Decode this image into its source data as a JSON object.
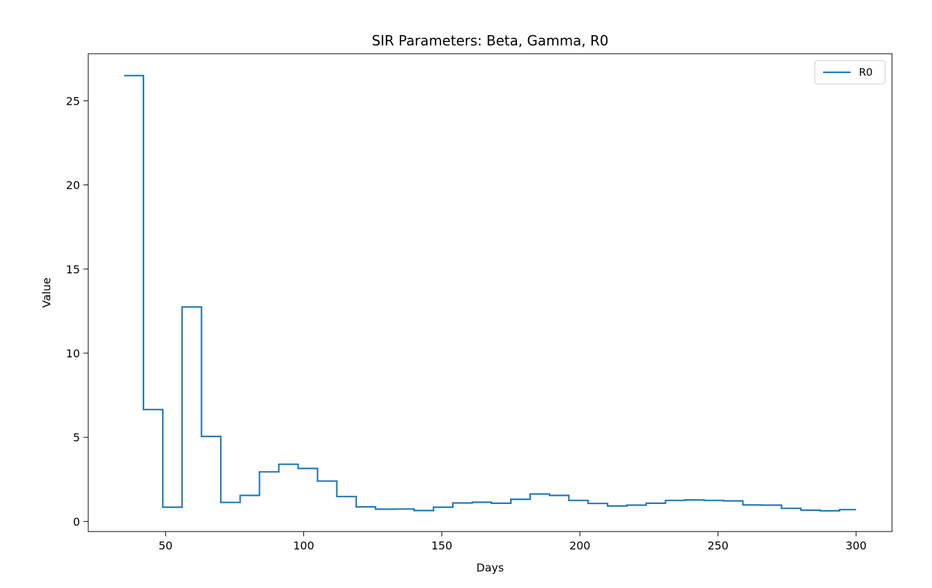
{
  "chart_data": {
    "type": "line",
    "title": "SIR Parameters: Beta, Gamma, R0",
    "xlabel": "Days",
    "ylabel": "Value",
    "xlim": [
      22,
      313
    ],
    "ylim": [
      -0.6,
      27.8
    ],
    "xticks": [
      50,
      100,
      150,
      200,
      250,
      300
    ],
    "yticks": [
      0,
      5,
      10,
      15,
      20,
      25
    ],
    "grid": false,
    "legend_position": "top-right",
    "series": [
      {
        "name": "R0",
        "color": "#1f77b4",
        "drawstyle": "steps-post",
        "x": [
          35,
          42,
          49,
          56,
          63,
          70,
          77,
          84,
          91,
          98,
          105,
          112,
          119,
          126,
          133,
          140,
          147,
          154,
          161,
          168,
          175,
          182,
          189,
          196,
          203,
          210,
          217,
          224,
          231,
          238,
          245,
          252,
          259,
          266,
          273,
          280,
          287,
          294,
          300
        ],
        "values": [
          26.5,
          6.65,
          0.85,
          12.75,
          5.05,
          1.13,
          1.55,
          2.95,
          3.4,
          3.15,
          2.4,
          1.48,
          0.87,
          0.73,
          0.74,
          0.65,
          0.85,
          1.1,
          1.14,
          1.08,
          1.32,
          1.63,
          1.55,
          1.25,
          1.07,
          0.92,
          0.97,
          1.08,
          1.25,
          1.28,
          1.25,
          1.22,
          0.98,
          0.97,
          0.78,
          0.67,
          0.63,
          0.7,
          0.7
        ]
      }
    ]
  }
}
